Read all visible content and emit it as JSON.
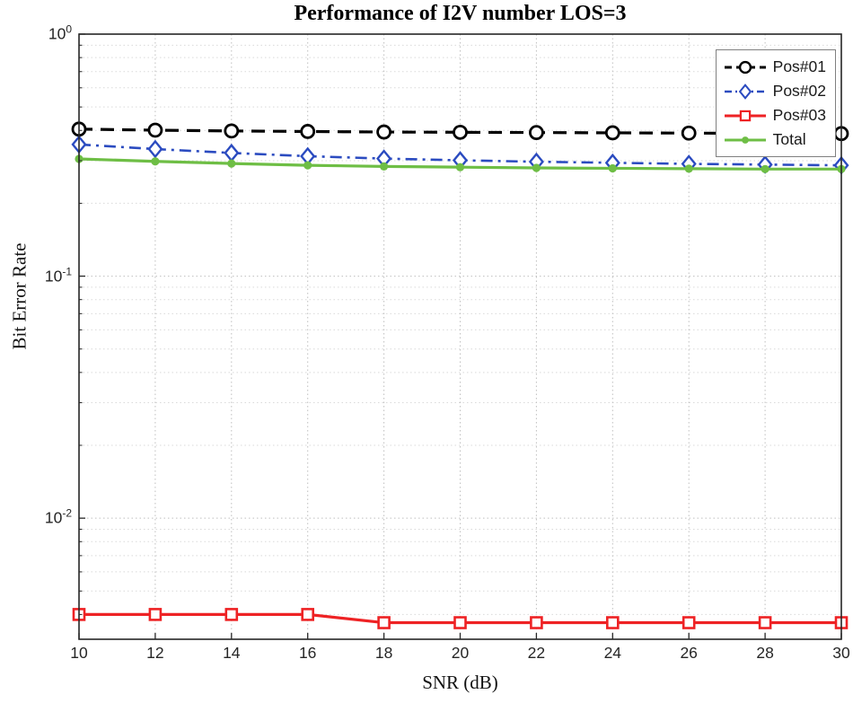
{
  "chart_data": {
    "type": "line",
    "title": "Performance of I2V number LOS=3",
    "xlabel": "SNR (dB)",
    "ylabel": "Bit Error Rate",
    "grid": "on",
    "minor_grid": "on",
    "legend_position": "top-right",
    "xlim": [
      10,
      30
    ],
    "ylim": [
      0.00316,
      1
    ],
    "yscale": "log",
    "x_ticks": [
      10,
      12,
      14,
      16,
      18,
      20,
      22,
      24,
      26,
      28,
      30
    ],
    "y_tick_exponents": [
      0,
      -1,
      -2
    ],
    "x": [
      10,
      12,
      14,
      16,
      18,
      20,
      22,
      24,
      26,
      28,
      30
    ],
    "series": [
      {
        "name": "Pos#01",
        "color": "#000000",
        "line_style": "dashed",
        "marker": "circle-open",
        "values": [
          0.405,
          0.401,
          0.398,
          0.396,
          0.394,
          0.393,
          0.392,
          0.391,
          0.39,
          0.389,
          0.388
        ]
      },
      {
        "name": "Pos#02",
        "color": "#2b4bc0",
        "line_style": "dashdot",
        "marker": "diamond-open",
        "values": [
          0.35,
          0.335,
          0.323,
          0.313,
          0.306,
          0.301,
          0.297,
          0.294,
          0.291,
          0.289,
          0.287
        ]
      },
      {
        "name": "Pos#03",
        "color": "#ee2224",
        "line_style": "solid",
        "marker": "square-open",
        "values": [
          0.004,
          0.004,
          0.004,
          0.004,
          0.0037,
          0.0037,
          0.0037,
          0.0037,
          0.0037,
          0.0037,
          0.0037
        ]
      },
      {
        "name": "Total",
        "color": "#6ebe45",
        "line_style": "solid",
        "marker": "circle-filled",
        "values": [
          0.305,
          0.298,
          0.292,
          0.287,
          0.284,
          0.282,
          0.28,
          0.279,
          0.278,
          0.277,
          0.277
        ]
      }
    ]
  }
}
